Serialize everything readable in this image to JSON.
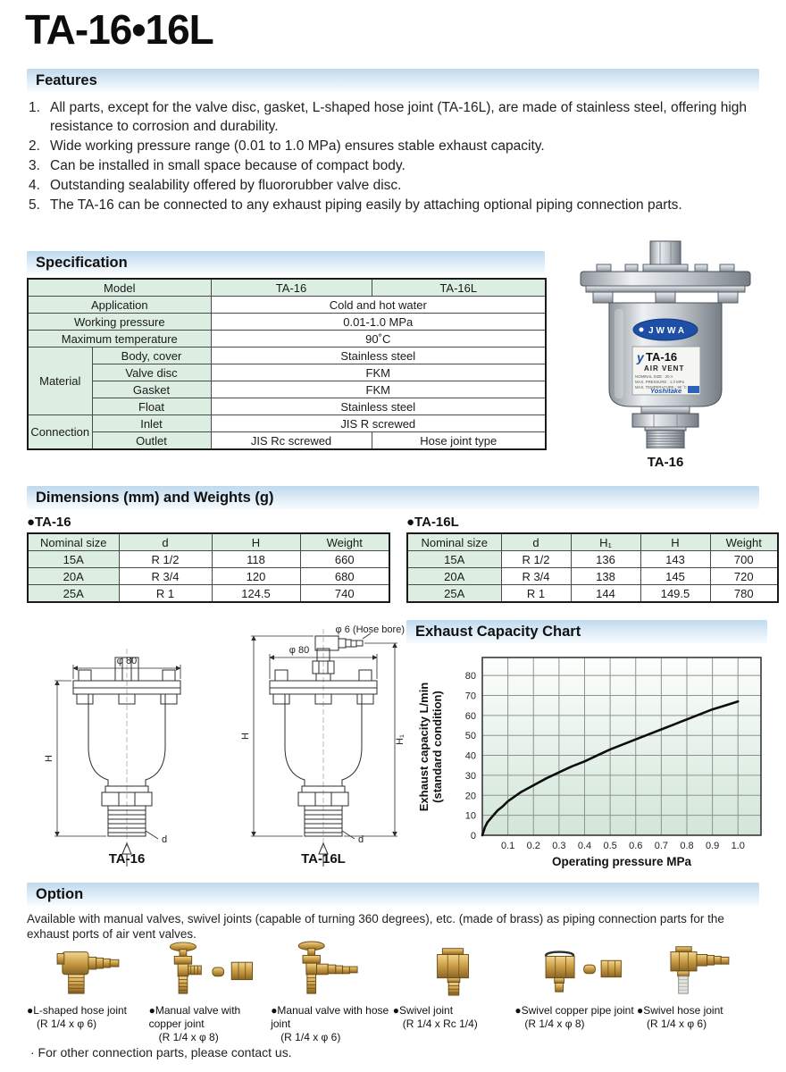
{
  "page": {
    "title": "TA-16•16L"
  },
  "features": {
    "title": "Features",
    "items": [
      {
        "num": "1.",
        "text": "All parts, except for the valve disc, gasket, L-shaped hose joint (TA-16L), are made of stainless steel, offering high resistance to corrosion and durability."
      },
      {
        "num": "2.",
        "text": "Wide working pressure range (0.01 to 1.0 MPa) ensures stable exhaust capacity."
      },
      {
        "num": "3.",
        "text": "Can be installed in small space because of compact body."
      },
      {
        "num": "4.",
        "text": "Outstanding sealability offered by fluororubber valve disc."
      },
      {
        "num": "5.",
        "text": "The TA-16 can be connected to any exhaust piping easily by attaching optional piping connection parts."
      }
    ]
  },
  "specification": {
    "title": "Specification",
    "model_label": "Model",
    "model_ta16": "TA-16",
    "model_ta16l": "TA-16L",
    "rows": {
      "application": {
        "label": "Application",
        "value": "Cold and hot water"
      },
      "working_pressure": {
        "label": "Working pressure",
        "value": "0.01-1.0 MPa"
      },
      "max_temperature": {
        "label": "Maximum temperature",
        "value": "90˚C"
      },
      "material": {
        "label": "Material",
        "sub": [
          {
            "label": "Body, cover",
            "value": "Stainless steel"
          },
          {
            "label": "Valve disc",
            "value": "FKM"
          },
          {
            "label": "Gasket",
            "value": "FKM"
          },
          {
            "label": "Float",
            "value": "Stainless steel"
          }
        ]
      },
      "connection": {
        "label": "Connection",
        "inlet": {
          "label": "Inlet",
          "value": "JIS R screwed"
        },
        "outlet": {
          "label": "Outlet",
          "value_ta16": "JIS Rc screwed",
          "value_ta16l": "Hose joint type"
        }
      }
    }
  },
  "photo": {
    "caption": "TA-16",
    "badge": "JWWA",
    "label_logo": "y",
    "label_model": "TA-16",
    "label_product": "AIR VENT",
    "label_line1": "NOMINAL SIZE : 20 A",
    "label_line2": "MAX. PRESSURE : 1.0 MPa",
    "label_line3": "MAX. TEMPERATURE : 90 ˚C",
    "label_brand": "Yoshitake"
  },
  "dimensions": {
    "title": "Dimensions (mm) and Weights (g)",
    "ta16": {
      "bullet_label": "●TA-16",
      "headers": [
        "Nominal size",
        "d",
        "H",
        "Weight"
      ],
      "rows": [
        [
          "15A",
          "R 1/2",
          "118",
          "660"
        ],
        [
          "20A",
          "R 3/4",
          "120",
          "680"
        ],
        [
          "25A",
          "R 1",
          "124.5",
          "740"
        ]
      ]
    },
    "ta16l": {
      "bullet_label": "●TA-16L",
      "headers": [
        "Nominal size",
        "d",
        "H₁",
        "H",
        "Weight"
      ],
      "rows": [
        [
          "15A",
          "R 1/2",
          "136",
          "143",
          "700"
        ],
        [
          "20A",
          "R 3/4",
          "138",
          "145",
          "720"
        ],
        [
          "25A",
          "R 1",
          "144",
          "149.5",
          "780"
        ]
      ]
    }
  },
  "drawings": {
    "ta16": {
      "caption": "TA-16",
      "dim_top": "φ 80",
      "dim_h": "H",
      "dim_d": "d"
    },
    "ta16l": {
      "caption": "TA-16L",
      "dim_top": "φ 80",
      "dim_hose": "φ 6 (Hose bore)",
      "dim_h": "H",
      "dim_h1": "H₁",
      "dim_d": "d"
    }
  },
  "chart": {
    "title": "Exhaust Capacity Chart"
  },
  "chart_data": {
    "type": "line",
    "title": "Exhaust Capacity Chart",
    "xlabel": "Operating pressure MPa",
    "ylabel": "Exhaust capacity L/min (standard condition)",
    "ylabel_lines": [
      "Exhaust capacity L/min",
      "(standard condition)"
    ],
    "xlim": [
      0,
      1.09
    ],
    "ylim": [
      0,
      89
    ],
    "grid": true,
    "legend": false,
    "xtick_labels": [
      "0.1",
      "0.2",
      "0.3",
      "0.4",
      "0.5",
      "0.6",
      "0.7",
      "0.8",
      "0.9",
      "1.0"
    ],
    "yticks": [
      0,
      10,
      20,
      30,
      40,
      50,
      60,
      70,
      80
    ],
    "series": [
      {
        "name": "Exhaust capacity",
        "points": [
          [
            0,
            0
          ],
          [
            0.01,
            4
          ],
          [
            0.02,
            6.5
          ],
          [
            0.04,
            9.5
          ],
          [
            0.06,
            12.5
          ],
          [
            0.08,
            14.5
          ],
          [
            0.1,
            17
          ],
          [
            0.15,
            21.5
          ],
          [
            0.2,
            25
          ],
          [
            0.25,
            28.5
          ],
          [
            0.3,
            31.5
          ],
          [
            0.35,
            34.5
          ],
          [
            0.4,
            37
          ],
          [
            0.45,
            40
          ],
          [
            0.5,
            43
          ],
          [
            0.55,
            45.5
          ],
          [
            0.6,
            48
          ],
          [
            0.65,
            50.5
          ],
          [
            0.7,
            53
          ],
          [
            0.75,
            55.5
          ],
          [
            0.8,
            58
          ],
          [
            0.85,
            60.5
          ],
          [
            0.9,
            63
          ],
          [
            0.95,
            65
          ],
          [
            1.0,
            67
          ]
        ]
      }
    ]
  },
  "options": {
    "title": "Option",
    "intro": "Available with manual valves, swivel joints (capable of turning 360 degrees), etc. (made of brass) as piping connection parts for the exhaust ports of air vent valves.",
    "items": [
      {
        "name": "●L-shaped hose joint",
        "size": "(R 1/4 x φ 6)"
      },
      {
        "name": "●Manual valve with copper joint",
        "size": "(R 1/4 x φ 8)"
      },
      {
        "name": "●Manual valve with hose joint",
        "size": "(R 1/4 x φ 6)"
      },
      {
        "name": "●Swivel joint",
        "size": "(R 1/4 x Rc 1/4)"
      },
      {
        "name": "●Swivel copper pipe joint",
        "size": "(R 1/4 x φ 8)"
      },
      {
        "name": "●Swivel hose joint",
        "size": "(R 1/4 x φ 6)"
      }
    ],
    "note": "· For other connection parts, please contact us."
  }
}
